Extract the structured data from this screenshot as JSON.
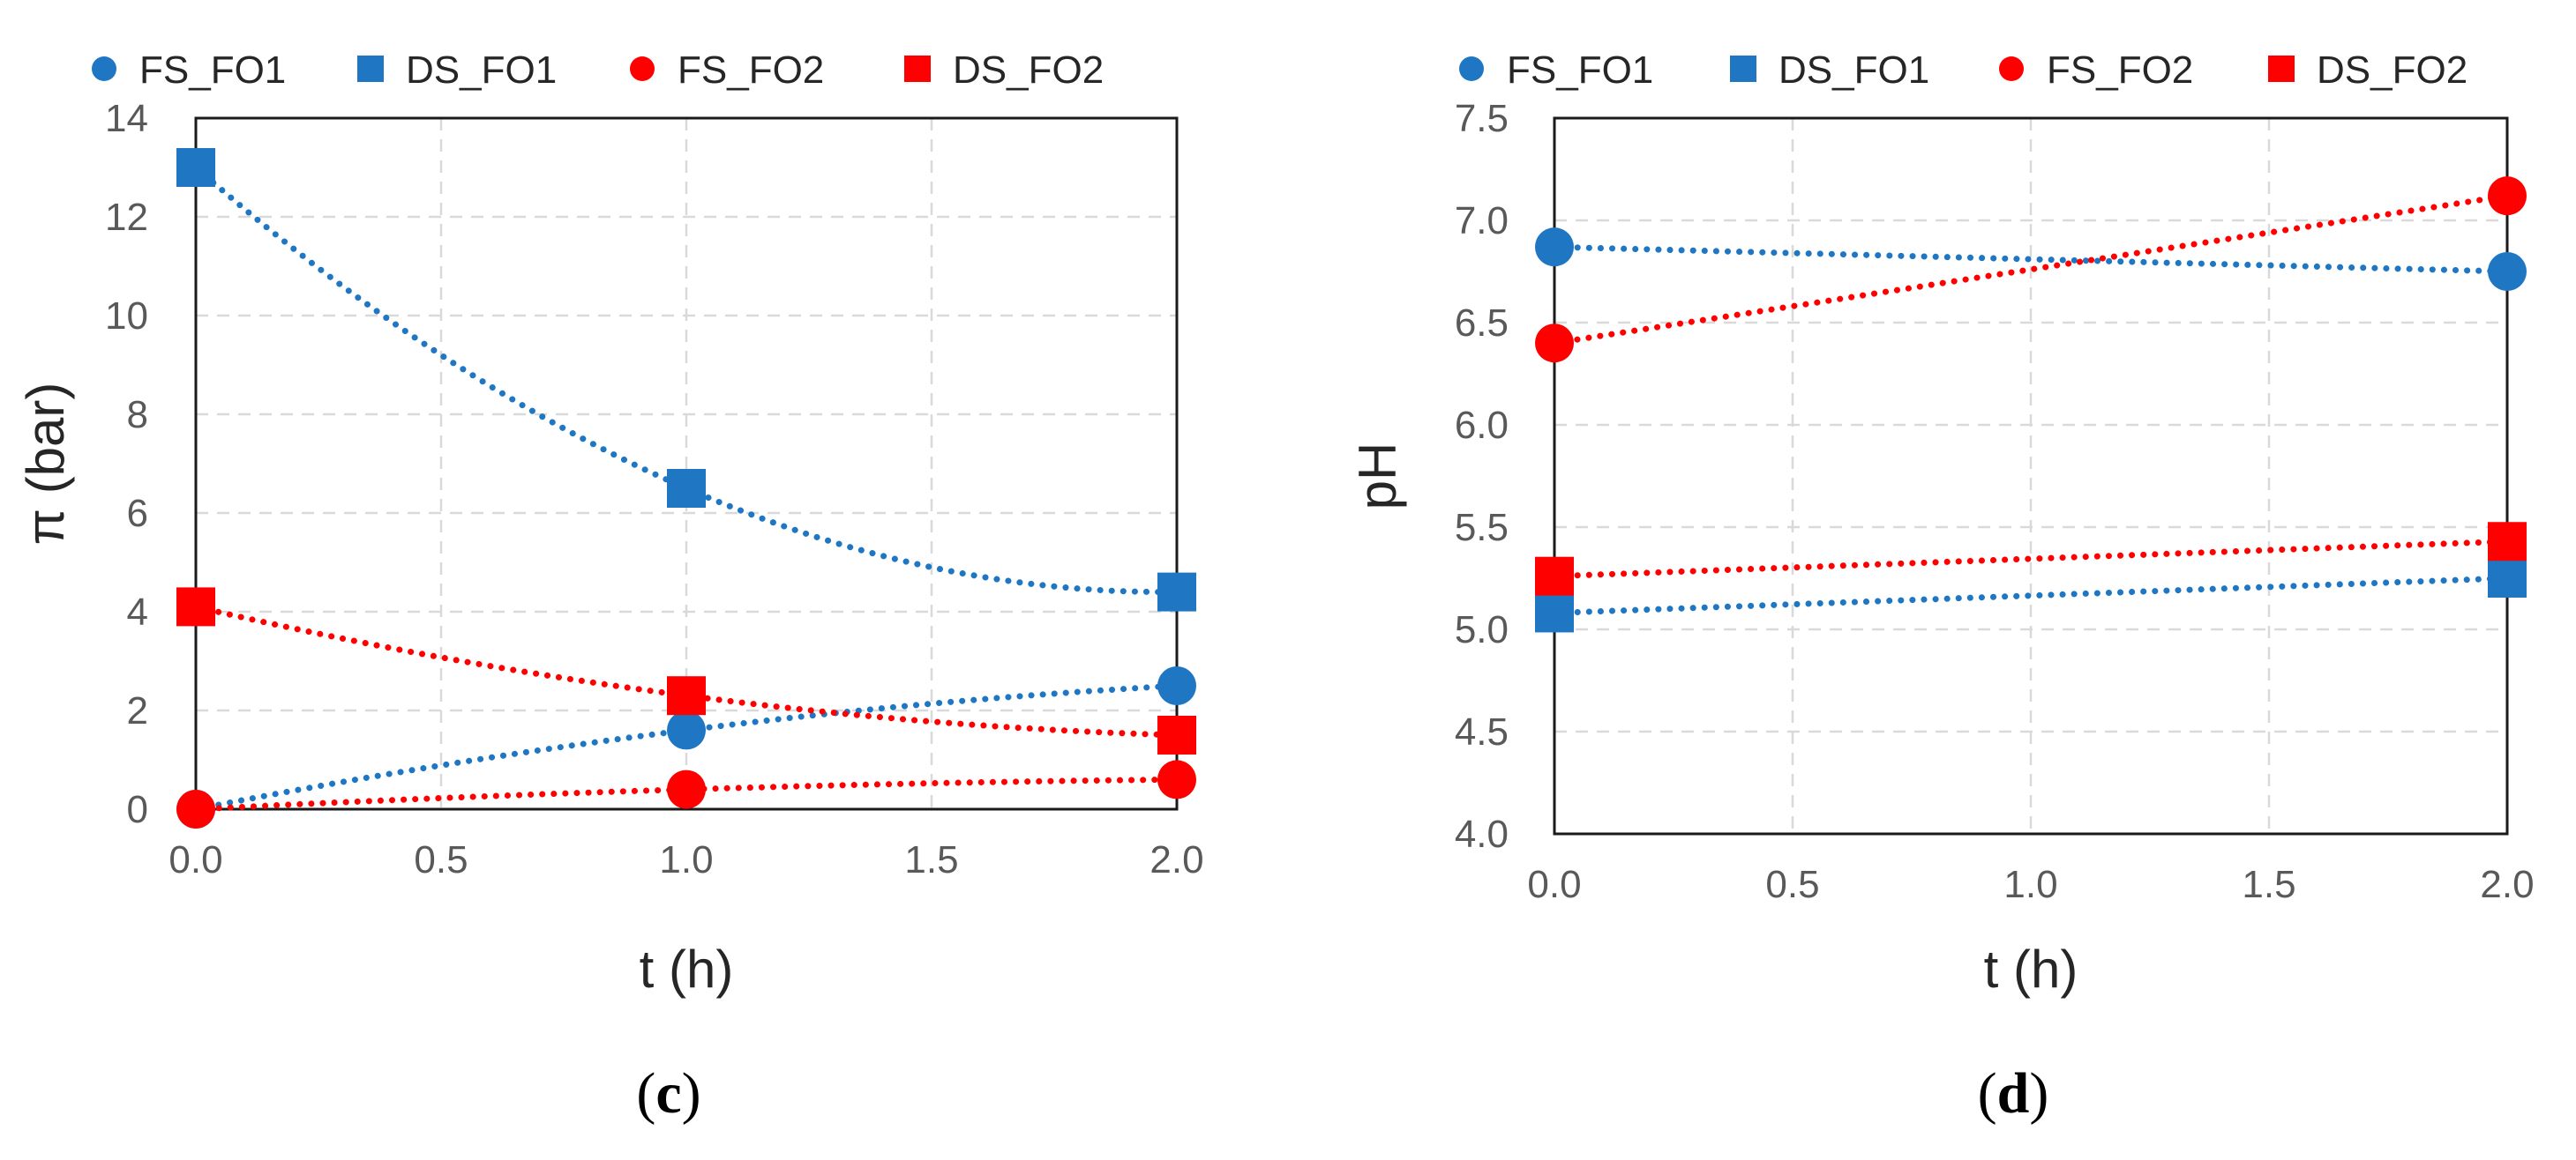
{
  "chart_data": [
    {
      "id": "c",
      "type": "scatter",
      "panel_label": "c",
      "xlabel": "t (h)",
      "ylabel": "π (bar)",
      "xlim": [
        0,
        2
      ],
      "ylim": [
        0,
        14
      ],
      "xticks": [
        "0.0",
        "0.5",
        "1.0",
        "1.5",
        "2.0"
      ],
      "yticks": [
        "0",
        "2",
        "4",
        "6",
        "8",
        "10",
        "12",
        "14"
      ],
      "grid": true,
      "legend_position": "top",
      "series": [
        {
          "name": "FS_FO1",
          "marker": "circle",
          "color": "#1f77c4",
          "x": [
            0,
            1,
            2
          ],
          "values": [
            0,
            1.6,
            2.5
          ],
          "trend": "poly2"
        },
        {
          "name": "DS_FO1",
          "marker": "square",
          "color": "#1f77c4",
          "x": [
            0,
            1,
            2
          ],
          "values": [
            13.0,
            6.5,
            4.4
          ],
          "trend": "poly2"
        },
        {
          "name": "FS_FO2",
          "marker": "circle",
          "color": "#ff0000",
          "x": [
            0,
            1,
            2
          ],
          "values": [
            0,
            0.4,
            0.6
          ],
          "trend": "poly2"
        },
        {
          "name": "DS_FO2",
          "marker": "square",
          "color": "#ff0000",
          "x": [
            0,
            1,
            2
          ],
          "values": [
            4.1,
            2.3,
            1.5
          ],
          "trend": "poly2"
        }
      ]
    },
    {
      "id": "d",
      "type": "scatter",
      "panel_label": "d",
      "xlabel": "t (h)",
      "ylabel": "pH",
      "xlim": [
        0,
        2
      ],
      "ylim": [
        4.0,
        7.5
      ],
      "xticks": [
        "0.0",
        "0.5",
        "1.0",
        "1.5",
        "2.0"
      ],
      "yticks": [
        "4.0",
        "4.5",
        "5.0",
        "5.5",
        "6.0",
        "6.5",
        "7.0",
        "7.5"
      ],
      "grid": true,
      "legend_position": "top",
      "series": [
        {
          "name": "FS_FO1",
          "marker": "circle",
          "color": "#1f77c4",
          "x": [
            0,
            2
          ],
          "values": [
            6.87,
            6.75
          ],
          "trend": "linear"
        },
        {
          "name": "DS_FO1",
          "marker": "square",
          "color": "#1f77c4",
          "x": [
            0,
            2
          ],
          "values": [
            5.08,
            5.25
          ],
          "trend": "linear"
        },
        {
          "name": "FS_FO2",
          "marker": "circle",
          "color": "#ff0000",
          "x": [
            0,
            2
          ],
          "values": [
            6.4,
            7.12
          ],
          "trend": "linear"
        },
        {
          "name": "DS_FO2",
          "marker": "square",
          "color": "#ff0000",
          "x": [
            0,
            2
          ],
          "values": [
            5.26,
            5.43
          ],
          "trend": "linear"
        }
      ]
    }
  ]
}
